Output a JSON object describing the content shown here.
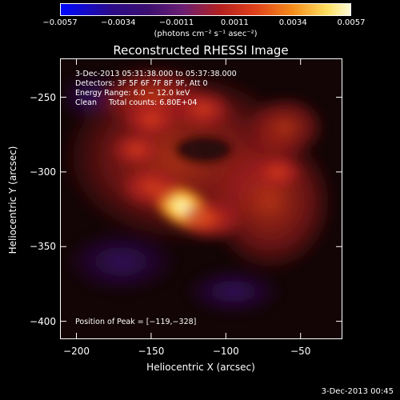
{
  "chart_data": {
    "type": "heatmap",
    "title": "Reconstructed RHESSI Image",
    "xlabel": "Heliocentric X (arcsec)",
    "ylabel": "Heliocentric Y (arcsec)",
    "xlim": [
      -211,
      -22
    ],
    "ylim": [
      -412,
      -224
    ],
    "xticks": [
      -200,
      -150,
      -100,
      -50
    ],
    "xtick_labels": [
      "−200",
      "−150",
      "−100",
      "−50"
    ],
    "yticks": [
      -250,
      -300,
      -350,
      -400
    ],
    "ytick_labels": [
      "−250",
      "−300",
      "−350",
      "−400"
    ],
    "colorbar": {
      "ticks": [
        "−0.0057",
        "−0.0034",
        "−0.0011",
        "0.0011",
        "0.0034",
        "0.0057"
      ],
      "range": [
        -0.0057,
        0.0057
      ],
      "unit_label": "(photons cm⁻² s⁻¹ asec⁻²)"
    },
    "annotations": {
      "time_range": "3-Dec-2013 05:31:38.000 to 05:37:38.000",
      "detectors": "Detectors: 3F 5F 6F 7F 8F 9F, Att 0",
      "energy_range": "Energy Range: 6.0 − 12.0 keV",
      "clean_counts": "Clean     Total counts: 6.80E+04",
      "peak_position": "Position of Peak = [−119,−328]"
    },
    "sources": [
      {
        "x": -128,
        "y": -324,
        "value": 0.0057
      },
      {
        "x": -150,
        "y": -310,
        "value": 0.004
      },
      {
        "x": -110,
        "y": -332,
        "value": 0.004
      },
      {
        "x": -115,
        "y": -258,
        "value": 0.0034
      },
      {
        "x": -150,
        "y": -265,
        "value": 0.003
      },
      {
        "x": -65,
        "y": -300,
        "value": 0.0025
      },
      {
        "x": -160,
        "y": -285,
        "value": 0.0025
      }
    ]
  },
  "footer_timestamp": "3-Dec-2013 00:45"
}
